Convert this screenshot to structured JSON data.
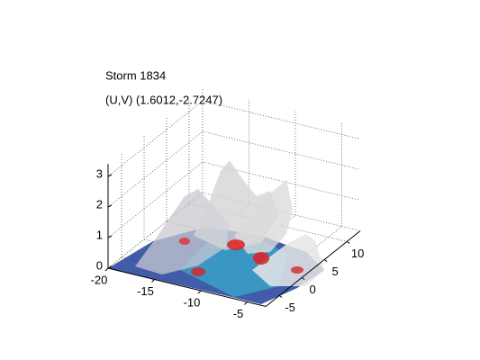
{
  "chart_data": {
    "type": "surface3d",
    "title": "Storm 1834",
    "subtitle": "(U,V) (1.6012,-2.7247)",
    "xlim": [
      -20,
      -3
    ],
    "xticks": [
      -20,
      -15,
      -10,
      -5
    ],
    "ylim": [
      -8,
      13
    ],
    "yticks": [
      -5,
      0,
      5,
      10
    ],
    "zlim": [
      0,
      3.4
    ],
    "zticks": [
      0,
      1,
      2,
      3
    ],
    "grid": true
  }
}
